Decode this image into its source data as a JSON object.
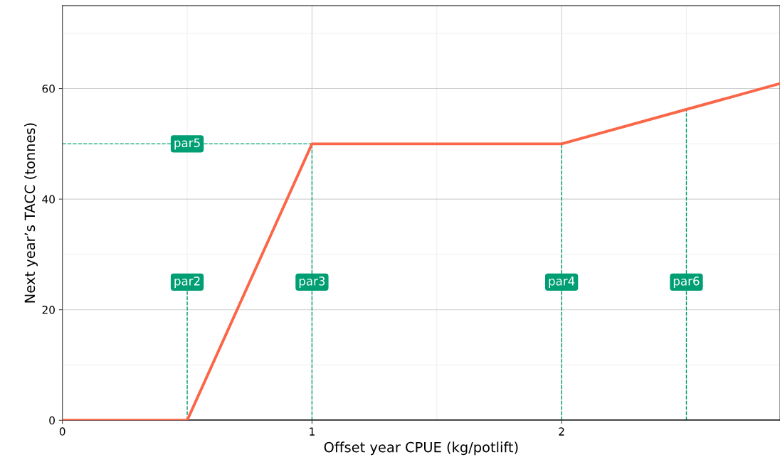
{
  "chart_data": {
    "type": "line",
    "xlabel": "Offset year CPUE (kg/potlift)",
    "ylabel": "Next year’s TACC (tonnes)",
    "x": [
      0,
      0.5,
      1,
      2,
      2.875
    ],
    "series": [
      {
        "color": "#fa6647",
        "values": [
          0,
          0,
          50,
          50,
          60.9
        ]
      }
    ],
    "xlim": [
      0,
      2.875
    ],
    "ylim": [
      0,
      75
    ],
    "xticks": [
      0,
      1,
      2
    ],
    "yticks": [
      0,
      20,
      40,
      60
    ],
    "grid": true,
    "marker": "none",
    "line_style": "solid",
    "ref_lines": [
      {
        "axis": "x",
        "value": 0.5,
        "label": "par2",
        "color": "#009e73",
        "line_style": "dashed"
      },
      {
        "axis": "x",
        "value": 1,
        "label": "par3",
        "color": "#009e73",
        "line_style": "dashed"
      },
      {
        "axis": "x",
        "value": 2,
        "label": "par4",
        "color": "#009e73",
        "line_style": "dashed"
      },
      {
        "axis": "x",
        "value": 2.5,
        "label": "par6",
        "color": "#009e73",
        "line_style": "dashed"
      },
      {
        "axis": "y",
        "value": 50,
        "label": "par5",
        "color": "#009e73",
        "line_style": "dashed"
      }
    ]
  }
}
